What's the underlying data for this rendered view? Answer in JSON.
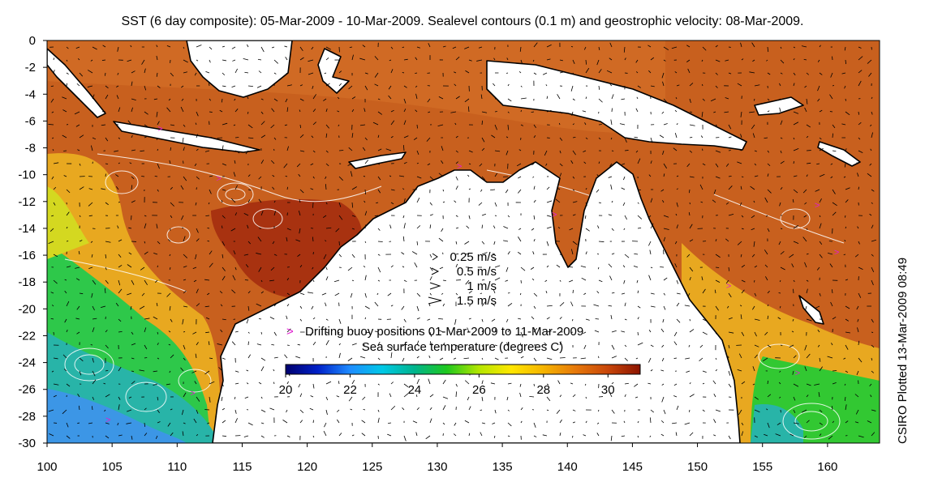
{
  "title": "SST (6 day composite): 05-Mar-2009 - 10-Mar-2009. Sealevel contours (0.1 m) and geostrophic velocity: 08-Mar-2009.",
  "side_label": "CSIRO Plotted 13-Mar-2009 08:49",
  "map": {
    "lon_range": [
      100,
      164
    ],
    "lat_range": [
      -30,
      0
    ],
    "x_ticks": [
      100,
      105,
      110,
      115,
      120,
      125,
      130,
      135,
      140,
      145,
      150,
      155,
      160
    ],
    "y_ticks": [
      0,
      -2,
      -4,
      -6,
      -8,
      -10,
      -12,
      -14,
      -16,
      -18,
      -20,
      -22,
      -24,
      -26,
      -28,
      -30
    ]
  },
  "velocity_legend": [
    {
      "label": "0.25 m/s",
      "speed": 0.25
    },
    {
      "label": "0.5 m/s",
      "speed": 0.5
    },
    {
      "label": "1 m/s",
      "speed": 1
    },
    {
      "label": "1.5 m/s",
      "speed": 1.5
    }
  ],
  "buoy_legend": {
    "symbol": ">",
    "label": "Drifting buoy positions 01-Mar-2009 to 11-Mar-2009",
    "color": "#e01fd0"
  },
  "colorbar": {
    "label": "Sea surface temperature (degrees C)",
    "range": [
      20,
      31
    ],
    "ticks": [
      20,
      22,
      24,
      26,
      28,
      30
    ],
    "colors": [
      "#00006e",
      "#0020c8",
      "#1e8cff",
      "#00c8e6",
      "#00b48c",
      "#1ec81e",
      "#b4e600",
      "#ffe600",
      "#f5b400",
      "#e6780a",
      "#c8460a",
      "#8c1400"
    ]
  },
  "colors": {
    "land": "#ffffff",
    "coast": "#000000",
    "contour": "#ffffff",
    "sst_warm": "#c85a1e",
    "sst_hot": "#a8320c",
    "sst_mid": "#e8a020",
    "sst_cool": "#1ec85a",
    "sst_cold": "#2896e6"
  }
}
